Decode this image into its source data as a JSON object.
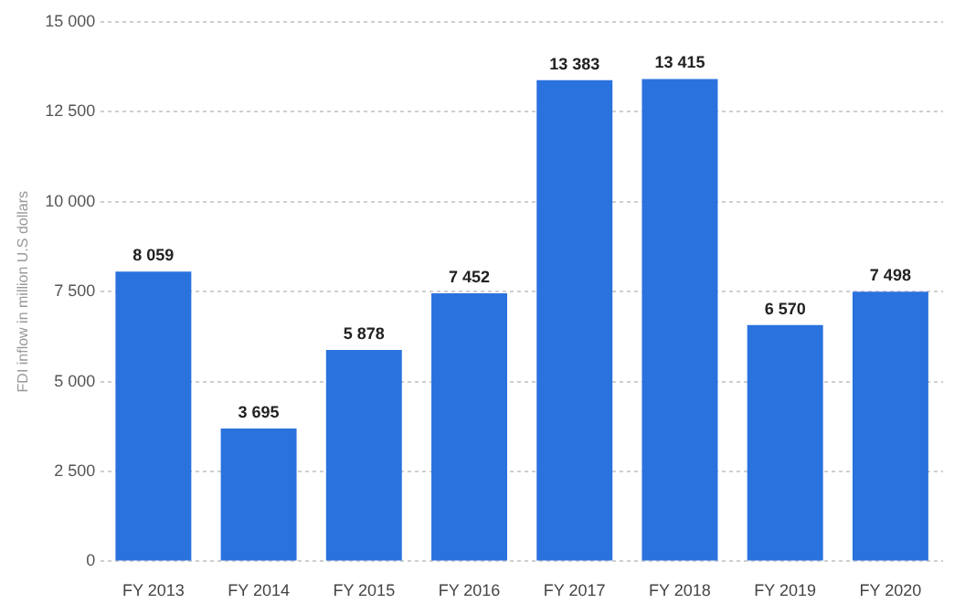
{
  "chart_data": {
    "type": "bar",
    "ylabel": "FDI inflow in million U.S dollars",
    "categories": [
      "FY 2013",
      "FY 2014",
      "FY 2015",
      "FY 2016",
      "FY 2017",
      "FY 2018",
      "FY 2019",
      "FY 2020"
    ],
    "values": [
      8059,
      3695,
      5878,
      7452,
      13383,
      13415,
      6570,
      7498
    ],
    "value_labels": [
      "8 059",
      "3 695",
      "5 878",
      "7 452",
      "13 383",
      "13 415",
      "6 570",
      "7 498"
    ],
    "color": "#2a72de",
    "ylim": [
      0,
      15000
    ],
    "yticks": [
      0,
      {
        "value": 2500,
        "label": "2 500"
      },
      {
        "value": 5000,
        "label": "5 000"
      },
      {
        "value": 7500,
        "label": "7 500"
      },
      {
        "value": 10000,
        "label": "10 000"
      },
      {
        "value": 12500,
        "label": "12 500"
      },
      {
        "value": 15000,
        "label": "15 000"
      }
    ],
    "grid": "y",
    "legend": false
  }
}
